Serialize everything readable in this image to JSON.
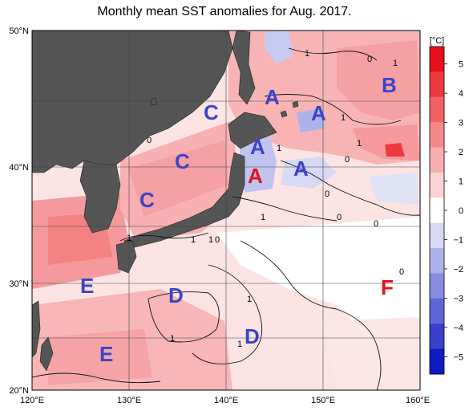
{
  "title": "Monthly mean SST anomalies for Aug. 2017.",
  "colorbar": {
    "unit": "[°C]",
    "ticks": [
      "5",
      "4",
      "3",
      "2",
      "1",
      "0",
      "−1",
      "−2",
      "−3",
      "−4",
      "−5"
    ],
    "colors": [
      "#e8101a",
      "#ee3a3f",
      "#f26266",
      "#f58a8c",
      "#f8aeb0",
      "#fbd3d4",
      "#ffffff",
      "#d6d8f4",
      "#aeb2ea",
      "#878ce0",
      "#5f66d6",
      "#3840cc",
      "#1019c2"
    ]
  },
  "axes": {
    "x_ticks": [
      "120°E",
      "130°E",
      "140°E",
      "150°E",
      "160°E"
    ],
    "y_ticks": [
      "50°N",
      "40°N",
      "30°N",
      "20°N"
    ]
  },
  "regions": [
    {
      "letter": "A",
      "color": "#3b44c8"
    },
    {
      "letter": "A",
      "color": "#3b44c8"
    },
    {
      "letter": "A",
      "color": "#3b44c8"
    },
    {
      "letter": "A",
      "color": "#3b44c8"
    },
    {
      "letter": "A",
      "color": "#e8101a"
    },
    {
      "letter": "B",
      "color": "#3b44c8"
    },
    {
      "letter": "C",
      "color": "#3b44c8"
    },
    {
      "letter": "C",
      "color": "#3b44c8"
    },
    {
      "letter": "C",
      "color": "#3b44c8"
    },
    {
      "letter": "D",
      "color": "#3b44c8"
    },
    {
      "letter": "D",
      "color": "#3b44c8"
    },
    {
      "letter": "E",
      "color": "#3b44c8"
    },
    {
      "letter": "E",
      "color": "#3b44c8"
    },
    {
      "letter": "F",
      "color": "#e8101a"
    }
  ],
  "contour_labels": [
    "1",
    "0",
    "1",
    "1",
    "1",
    "0",
    "1",
    "0",
    "1",
    "0",
    "0",
    "1",
    "1",
    "1",
    "0",
    "1",
    "1",
    "1",
    "0",
    "0"
  ]
}
